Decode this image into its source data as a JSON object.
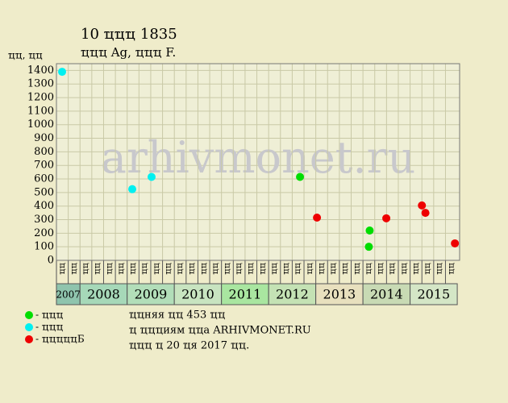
{
  "chart_data": {
    "type": "scatter",
    "title": "10 ҵҵҵ 1835",
    "subtitle": "ҵҵҵ Ag, ҵҵҵ F.",
    "y_label": "ҵҵ, ҵҵ",
    "watermark": "arhivmonet.ru",
    "xlim": [
      0,
      34
    ],
    "ylim": [
      0,
      1450
    ],
    "yticks": [
      0,
      100,
      200,
      300,
      400,
      500,
      600,
      700,
      800,
      900,
      1000,
      1100,
      1200,
      1300,
      1400
    ],
    "grid": true,
    "columns": [
      "ҵҵ",
      "ҵҵ",
      "ҵҵ",
      "ҵҵ",
      "ҵҵ",
      "ҵҵ",
      "ҵҵ",
      "ҵҵ",
      "ҵҵ",
      "ҵҵ",
      "ҵҵ",
      "ҵҵ",
      "ҵҵ",
      "ҵҵ",
      "ҵҵ",
      "ҵҵ",
      "ҵҵ",
      "ҵҵ",
      "ҵҵ",
      "ҵҵ",
      "ҵҵ",
      "ҵҵ",
      "ҵҵ",
      "ҵҵ",
      "ҵҵ",
      "ҵҵ",
      "ҵҵ",
      "ҵҵ",
      "ҵҵ",
      "ҵҵ",
      "ҵҵ",
      "ҵҵ",
      "ҵҵ",
      "ҵҵ"
    ],
    "years": [
      {
        "label": "2007",
        "span": 2,
        "color": "#8fc4ad"
      },
      {
        "label": "2008",
        "span": 4,
        "color": "#a6d8b8"
      },
      {
        "label": "2009",
        "span": 4,
        "color": "#b2deb9"
      },
      {
        "label": "2010",
        "span": 4,
        "color": "#c8e4c0"
      },
      {
        "label": "2011",
        "span": 4,
        "color": "#a9e6a0"
      },
      {
        "label": "2012",
        "span": 4,
        "color": "#c4e2b4"
      },
      {
        "label": "2013",
        "span": 4,
        "color": "#e8e0be"
      },
      {
        "label": "2014",
        "span": 4,
        "color": "#c8dab4"
      },
      {
        "label": "2015",
        "span": 4,
        "color": "#d4e6c6"
      }
    ],
    "series": [
      {
        "name": "- ҵҵҵ",
        "color": "#00dd00",
        "x": [
          20.66,
          26.5,
          26.57
        ],
        "values": [
          615,
          100,
          220
        ]
      },
      {
        "name": "- ҵҵҵ",
        "color": "#00f0f0",
        "x": [
          0.48,
          6.43,
          8.07
        ],
        "values": [
          1390,
          525,
          615
        ]
      },
      {
        "name": "- ҵҵҵҵҵБ",
        "color": "#ee0000",
        "x": [
          22.1,
          27.98,
          31.0,
          31.3,
          33.8
        ],
        "values": [
          315,
          310,
          405,
          350,
          125
        ]
      }
    ],
    "notes": [
      "ҵҵняя ҵҵ 453 ҵҵ",
      "ҵ ҵҵҵиям ҵҵа ARHIVMONET.RU",
      "ҵҵҵ ҵ 20 ҵя 2017 ҵҵ."
    ]
  }
}
